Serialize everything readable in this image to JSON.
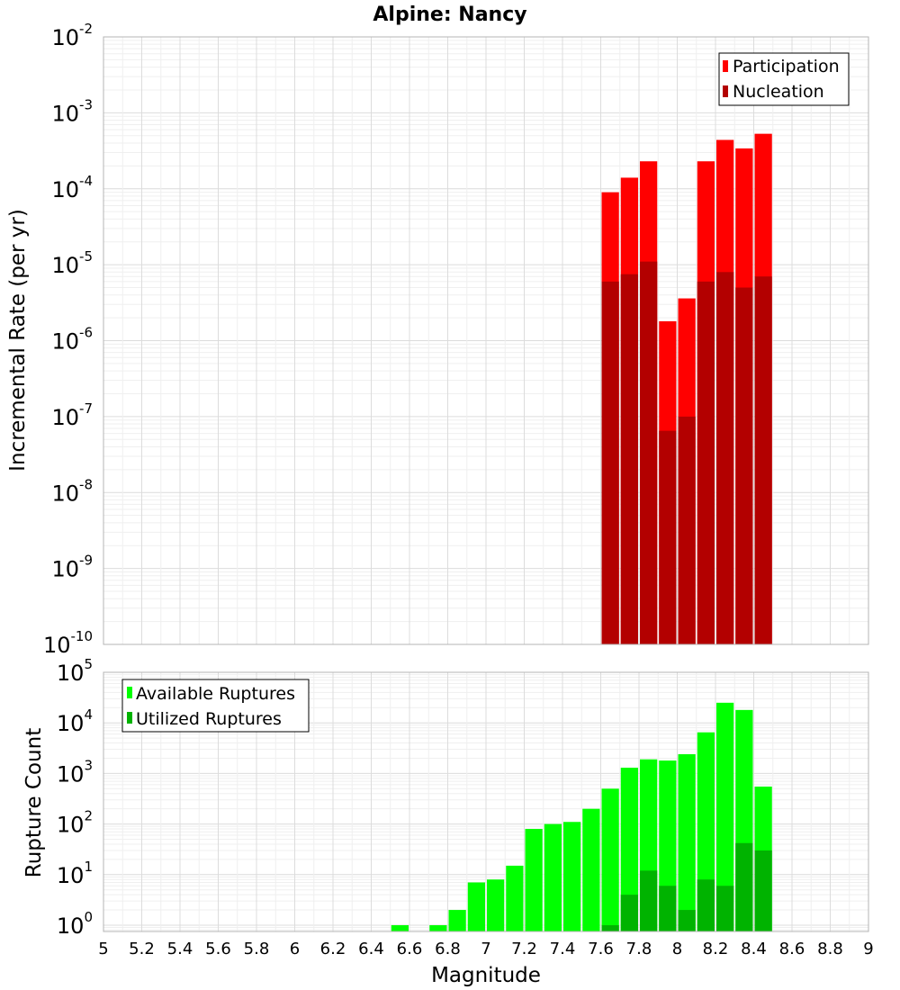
{
  "chart_data": [
    {
      "type": "bar",
      "title": "Alpine: Nancy",
      "xlabel": "",
      "ylabel": "Incremental Rate (per yr)",
      "yscale": "log",
      "ylim": [
        1e-10,
        0.01
      ],
      "xlim": [
        5,
        9
      ],
      "grid": true,
      "legend_placement": "top-right",
      "colors": {
        "Participation": "#ff0000",
        "Nucleation": "#b30000"
      },
      "y_tick_labels": [
        {
          "base": "10",
          "exp": "-10"
        },
        {
          "base": "10",
          "exp": "-9"
        },
        {
          "base": "10",
          "exp": "-8"
        },
        {
          "base": "10",
          "exp": "-7"
        },
        {
          "base": "10",
          "exp": "-6"
        },
        {
          "base": "10",
          "exp": "-5"
        },
        {
          "base": "10",
          "exp": "-4"
        },
        {
          "base": "10",
          "exp": "-3"
        },
        {
          "base": "10",
          "exp": "-2"
        }
      ],
      "x": [
        7.65,
        7.75,
        7.85,
        7.95,
        8.05,
        8.15,
        8.25,
        8.35,
        8.45
      ],
      "series": [
        {
          "name": "Participation",
          "values": [
            9e-05,
            0.00014,
            0.00023,
            1.8e-06,
            3.6e-06,
            0.00023,
            0.00044,
            0.00034,
            0.00053
          ]
        },
        {
          "name": "Nucleation",
          "values": [
            6e-06,
            7.5e-06,
            1.1e-05,
            6.5e-08,
            1e-07,
            6e-06,
            8e-06,
            5e-06,
            7e-06
          ]
        }
      ]
    },
    {
      "type": "bar",
      "title": "",
      "xlabel": "Magnitude",
      "ylabel": "Rupture Count",
      "yscale": "log",
      "ylim": [
        0.75,
        100000.0
      ],
      "xlim": [
        5,
        9
      ],
      "grid": true,
      "legend_placement": "top-left",
      "colors": {
        "Available Ruptures": "#00ff00",
        "Utilized Ruptures": "#00b300"
      },
      "x_tick_labels": [
        "5",
        "5.2",
        "5.4",
        "5.6",
        "5.8",
        "6",
        "6.2",
        "6.4",
        "6.6",
        "6.8",
        "7",
        "7.2",
        "7.4",
        "7.6",
        "7.8",
        "8",
        "8.2",
        "8.4",
        "8.6",
        "8.8",
        "9"
      ],
      "y_tick_labels": [
        {
          "base": "10",
          "exp": "0"
        },
        {
          "base": "10",
          "exp": "1"
        },
        {
          "base": "10",
          "exp": "2"
        },
        {
          "base": "10",
          "exp": "3"
        },
        {
          "base": "10",
          "exp": "4"
        },
        {
          "base": "10",
          "exp": "5"
        }
      ],
      "x": [
        6.55,
        6.75,
        6.85,
        6.95,
        7.05,
        7.15,
        7.25,
        7.35,
        7.45,
        7.55,
        7.65,
        7.75,
        7.85,
        7.95,
        8.05,
        8.15,
        8.25,
        8.35,
        8.45
      ],
      "series": [
        {
          "name": "Available Ruptures",
          "values": [
            1,
            1,
            2,
            7,
            8,
            15,
            80,
            100,
            110,
            200,
            500,
            1300,
            1900,
            1800,
            2400,
            6500,
            25000,
            18000,
            550
          ]
        },
        {
          "name": "Utilized Ruptures",
          "values": [
            0,
            0,
            0,
            0,
            0,
            0,
            0,
            0,
            0,
            0,
            1,
            4,
            12,
            6,
            2,
            8,
            6,
            42,
            30
          ]
        }
      ]
    }
  ]
}
